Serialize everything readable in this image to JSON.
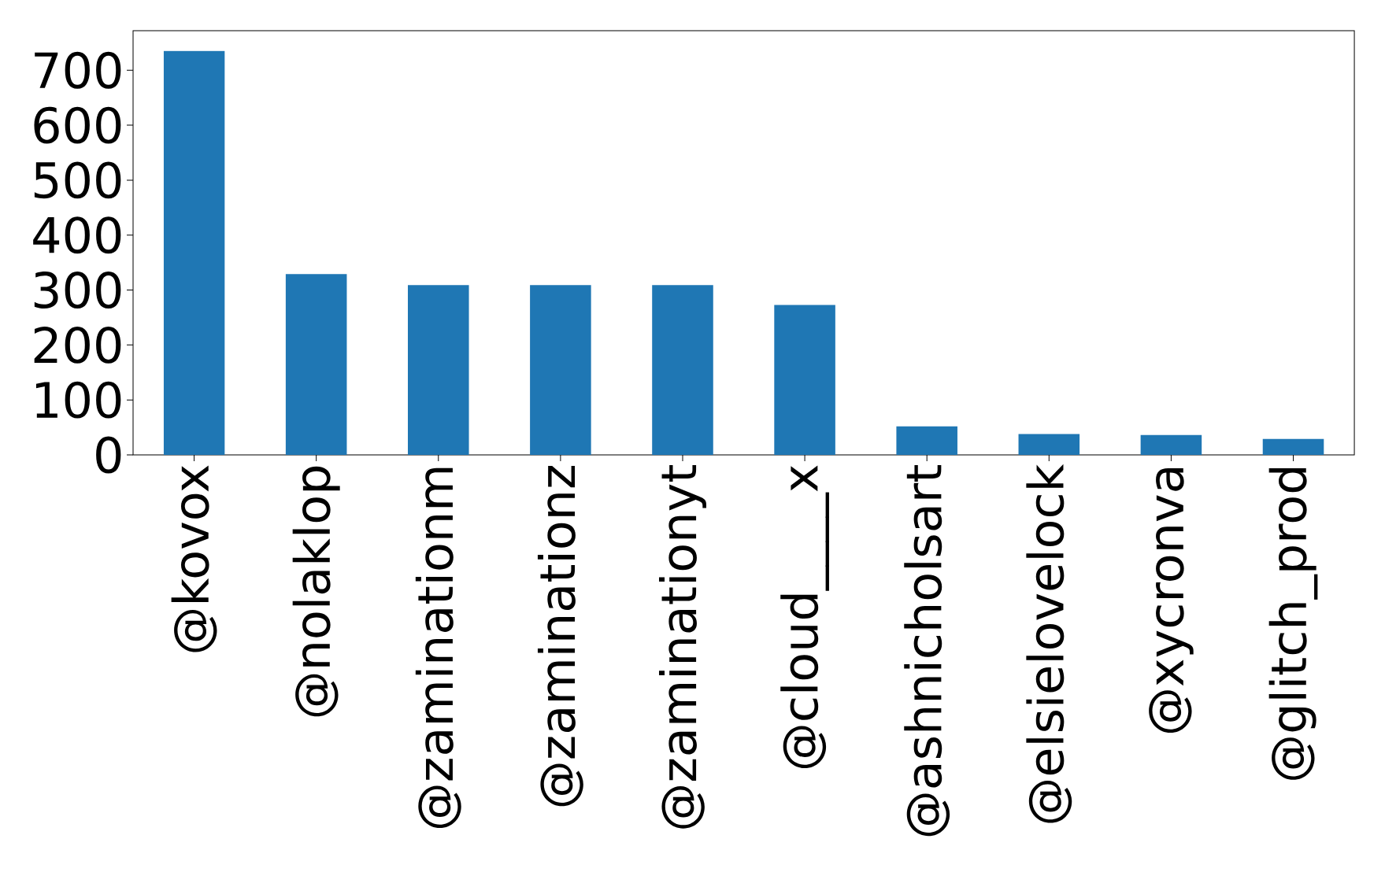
{
  "chart_data": {
    "type": "bar",
    "categories": [
      "@kovox",
      "@nolaklop",
      "@zaminationm",
      "@zaminationz",
      "@zaminationyt",
      "@cloud____x",
      "@ashnicholsart",
      "@elsielovelock",
      "@xycronva",
      "@glitch_prod"
    ],
    "values": [
      735,
      329,
      309,
      309,
      309,
      273,
      52,
      38,
      36,
      29
    ],
    "color": "#1f77b4",
    "ylim": [
      0,
      772
    ],
    "yticks": [
      0,
      100,
      200,
      300,
      400,
      500,
      600,
      700
    ]
  }
}
